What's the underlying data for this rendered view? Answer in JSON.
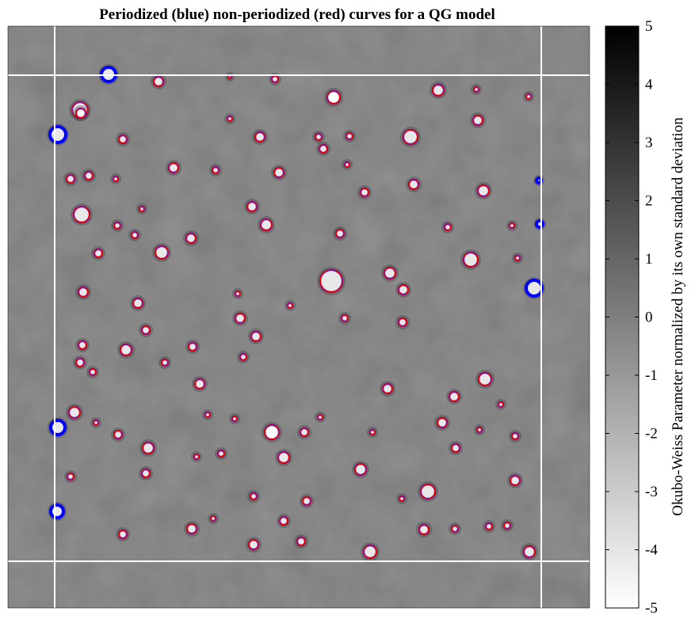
{
  "chart_data": {
    "type": "heatmap",
    "title": "Periodized (blue) non-periodized (red) curves for a QG model",
    "colorbar": {
      "label": "Okubo-Weiss Parameter normalized by its own standard deviation",
      "range": [
        -5,
        5
      ],
      "ticks": [
        "5",
        "4",
        "3",
        "2",
        "1",
        "0",
        "-1",
        "-2",
        "-3",
        "-4",
        "-5"
      ],
      "colormap": "white-to-black",
      "low_color": "#ffffff",
      "high_color": "#000000"
    },
    "field_background_color": "#7d7d7d",
    "boundary_line_color": "#ffffff",
    "series": [
      {
        "name": "Periodized (blue)",
        "color": "#0000ff"
      },
      {
        "name": "non-periodized (red)",
        "color": "#ff0000"
      }
    ],
    "eddies": [
      [
        200,
        103,
        6,
        1
      ],
      [
        290,
        97,
        2,
        1
      ],
      [
        347,
        100,
        4,
        1
      ],
      [
        421,
        123,
        8,
        0
      ],
      [
        553,
        114,
        7,
        1
      ],
      [
        601,
        113,
        3,
        1
      ],
      [
        667,
        122,
        3,
        1
      ],
      [
        101,
        139,
        10,
        1
      ],
      [
        102,
        143,
        6,
        0
      ],
      [
        290,
        150,
        3,
        1
      ],
      [
        603,
        152,
        6,
        1
      ],
      [
        155,
        176,
        5,
        1
      ],
      [
        328,
        173,
        6,
        1
      ],
      [
        402,
        173,
        4,
        1
      ],
      [
        441,
        172,
        4,
        1
      ],
      [
        518,
        173,
        9,
        1
      ],
      [
        408,
        188,
        5,
        1
      ],
      [
        219,
        212,
        6,
        1
      ],
      [
        272,
        215,
        4,
        1
      ],
      [
        352,
        218,
        6,
        1
      ],
      [
        438,
        208,
        3,
        1
      ],
      [
        522,
        233,
        6,
        1
      ],
      [
        610,
        241,
        7,
        1
      ],
      [
        89,
        226,
        5,
        1
      ],
      [
        112,
        222,
        5,
        1
      ],
      [
        146,
        226,
        3,
        1
      ],
      [
        460,
        243,
        5,
        1
      ],
      [
        103,
        271,
        10,
        1
      ],
      [
        318,
        261,
        6,
        1
      ],
      [
        179,
        264,
        3,
        1
      ],
      [
        336,
        284,
        7,
        1
      ],
      [
        429,
        295,
        5,
        1
      ],
      [
        148,
        285,
        4,
        1
      ],
      [
        170,
        297,
        4,
        1
      ],
      [
        241,
        301,
        6,
        1
      ],
      [
        565,
        287,
        4,
        1
      ],
      [
        646,
        285,
        3,
        1
      ],
      [
        204,
        319,
        8,
        1
      ],
      [
        124,
        320,
        5,
        1
      ],
      [
        594,
        328,
        9,
        1
      ],
      [
        653,
        326,
        3,
        1
      ],
      [
        418,
        355,
        14,
        1
      ],
      [
        492,
        345,
        7,
        1
      ],
      [
        509,
        366,
        6,
        1
      ],
      [
        174,
        383,
        6,
        1
      ],
      [
        105,
        369,
        6,
        1
      ],
      [
        300,
        371,
        3,
        1
      ],
      [
        303,
        402,
        6,
        1
      ],
      [
        366,
        386,
        3,
        1
      ],
      [
        435,
        402,
        4,
        1
      ],
      [
        508,
        407,
        5,
        1
      ],
      [
        159,
        442,
        7,
        1
      ],
      [
        184,
        417,
        5,
        1
      ],
      [
        243,
        438,
        5,
        1
      ],
      [
        323,
        425,
        6,
        1
      ],
      [
        104,
        436,
        5,
        1
      ],
      [
        101,
        458,
        5,
        1
      ],
      [
        117,
        470,
        4,
        1
      ],
      [
        208,
        458,
        4,
        1
      ],
      [
        307,
        451,
        4,
        1
      ],
      [
        489,
        491,
        6,
        1
      ],
      [
        573,
        501,
        6,
        1
      ],
      [
        612,
        479,
        8,
        1
      ],
      [
        252,
        485,
        6,
        1
      ],
      [
        632,
        511,
        3,
        1
      ],
      [
        94,
        521,
        7,
        1
      ],
      [
        121,
        534,
        3,
        1
      ],
      [
        149,
        549,
        5,
        1
      ],
      [
        262,
        524,
        3,
        1
      ],
      [
        296,
        529,
        3,
        1
      ],
      [
        343,
        546,
        9,
        0
      ],
      [
        384,
        546,
        5,
        1
      ],
      [
        404,
        527,
        3,
        1
      ],
      [
        470,
        546,
        3,
        1
      ],
      [
        558,
        534,
        6,
        1
      ],
      [
        605,
        543,
        3,
        1
      ],
      [
        650,
        551,
        4,
        1
      ],
      [
        187,
        566,
        7,
        1
      ],
      [
        248,
        577,
        3,
        1
      ],
      [
        279,
        573,
        4,
        1
      ],
      [
        358,
        578,
        7,
        1
      ],
      [
        455,
        593,
        7,
        1
      ],
      [
        575,
        566,
        5,
        1
      ],
      [
        540,
        621,
        9,
        1
      ],
      [
        184,
        598,
        5,
        1
      ],
      [
        89,
        602,
        4,
        1
      ],
      [
        320,
        627,
        4,
        1
      ],
      [
        387,
        633,
        5,
        1
      ],
      [
        507,
        630,
        3,
        1
      ],
      [
        650,
        607,
        6,
        1
      ],
      [
        155,
        675,
        5,
        1
      ],
      [
        242,
        668,
        6,
        1
      ],
      [
        269,
        655,
        3,
        1
      ],
      [
        358,
        658,
        5,
        1
      ],
      [
        380,
        684,
        5,
        1
      ],
      [
        320,
        688,
        6,
        1
      ],
      [
        467,
        697,
        8,
        1
      ],
      [
        535,
        669,
        6,
        1
      ],
      [
        574,
        668,
        4,
        1
      ],
      [
        617,
        665,
        4,
        1
      ],
      [
        640,
        664,
        4,
        1
      ],
      [
        668,
        697,
        7,
        1
      ],
      [
        137,
        94,
        9,
        2
      ],
      [
        73,
        170,
        10,
        2
      ],
      [
        680,
        228,
        3,
        2
      ],
      [
        681,
        283,
        4,
        2
      ],
      [
        674,
        364,
        10,
        2
      ],
      [
        73,
        540,
        9,
        2
      ],
      [
        72,
        646,
        8,
        2
      ]
    ]
  }
}
